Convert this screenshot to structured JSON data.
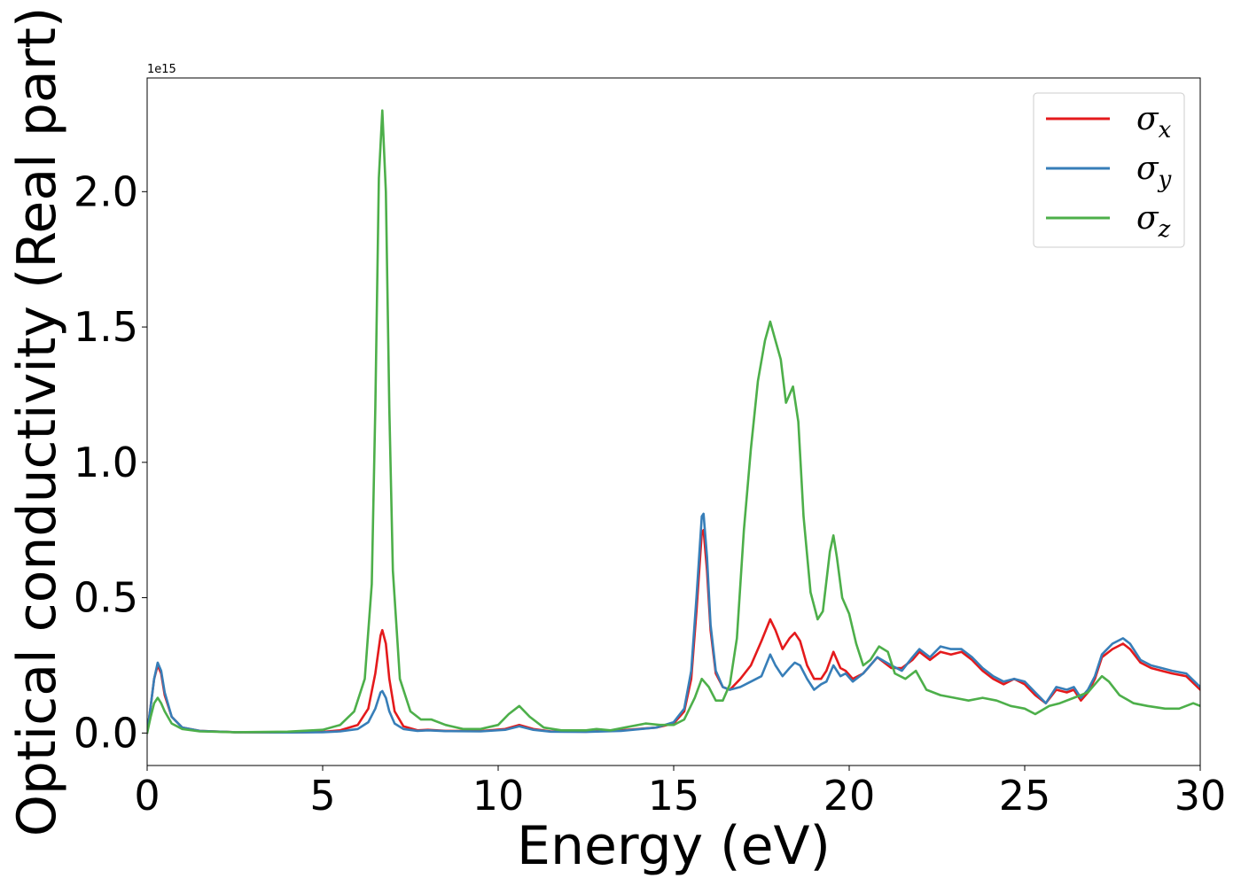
{
  "chart_data": {
    "type": "line",
    "title": "",
    "xlabel": "Energy (eV)",
    "ylabel": "Optical conductivity (Real part)",
    "y_offset_label": "1e15",
    "xlim": [
      0,
      30
    ],
    "ylim": [
      -0.12,
      2.42
    ],
    "xticks": [
      0,
      5,
      10,
      15,
      20,
      25,
      30
    ],
    "xtick_labels": [
      "0",
      "5",
      "10",
      "15",
      "20",
      "25",
      "30"
    ],
    "yticks": [
      0.0,
      0.5,
      1.0,
      1.5,
      2.0
    ],
    "ytick_labels": [
      "0.0",
      "0.5",
      "1.0",
      "1.5",
      "2.0"
    ],
    "grid": false,
    "legend_position": "top-right",
    "series": [
      {
        "name": "σx",
        "legend_base": "σ",
        "legend_sub": "x",
        "color": "#e41a1c",
        "points": [
          [
            0.0,
            0.0
          ],
          [
            0.1,
            0.1
          ],
          [
            0.2,
            0.2
          ],
          [
            0.3,
            0.25
          ],
          [
            0.4,
            0.22
          ],
          [
            0.5,
            0.14
          ],
          [
            0.7,
            0.06
          ],
          [
            1.0,
            0.02
          ],
          [
            1.5,
            0.008
          ],
          [
            2.5,
            0.003
          ],
          [
            4.0,
            0.002
          ],
          [
            5.0,
            0.004
          ],
          [
            5.5,
            0.01
          ],
          [
            6.0,
            0.03
          ],
          [
            6.3,
            0.09
          ],
          [
            6.5,
            0.22
          ],
          [
            6.65,
            0.36
          ],
          [
            6.7,
            0.38
          ],
          [
            6.8,
            0.33
          ],
          [
            6.9,
            0.2
          ],
          [
            7.05,
            0.08
          ],
          [
            7.3,
            0.025
          ],
          [
            7.7,
            0.01
          ],
          [
            8.0,
            0.012
          ],
          [
            8.5,
            0.008
          ],
          [
            9.5,
            0.007
          ],
          [
            10.2,
            0.015
          ],
          [
            10.6,
            0.03
          ],
          [
            11.0,
            0.015
          ],
          [
            11.5,
            0.006
          ],
          [
            12.5,
            0.005
          ],
          [
            13.5,
            0.01
          ],
          [
            14.5,
            0.02
          ],
          [
            15.0,
            0.035
          ],
          [
            15.3,
            0.08
          ],
          [
            15.5,
            0.2
          ],
          [
            15.65,
            0.45
          ],
          [
            15.8,
            0.74
          ],
          [
            15.85,
            0.75
          ],
          [
            15.95,
            0.6
          ],
          [
            16.05,
            0.38
          ],
          [
            16.2,
            0.22
          ],
          [
            16.4,
            0.17
          ],
          [
            16.6,
            0.16
          ],
          [
            16.9,
            0.2
          ],
          [
            17.2,
            0.25
          ],
          [
            17.5,
            0.34
          ],
          [
            17.75,
            0.42
          ],
          [
            17.9,
            0.38
          ],
          [
            18.1,
            0.31
          ],
          [
            18.3,
            0.35
          ],
          [
            18.45,
            0.37
          ],
          [
            18.6,
            0.34
          ],
          [
            18.8,
            0.25
          ],
          [
            19.0,
            0.2
          ],
          [
            19.2,
            0.2
          ],
          [
            19.35,
            0.23
          ],
          [
            19.55,
            0.3
          ],
          [
            19.75,
            0.24
          ],
          [
            19.9,
            0.23
          ],
          [
            20.1,
            0.2
          ],
          [
            20.4,
            0.22
          ],
          [
            20.8,
            0.28
          ],
          [
            21.2,
            0.24
          ],
          [
            21.5,
            0.24
          ],
          [
            21.8,
            0.27
          ],
          [
            22.0,
            0.3
          ],
          [
            22.3,
            0.27
          ],
          [
            22.6,
            0.3
          ],
          [
            22.9,
            0.29
          ],
          [
            23.2,
            0.3
          ],
          [
            23.5,
            0.27
          ],
          [
            23.8,
            0.23
          ],
          [
            24.1,
            0.2
          ],
          [
            24.4,
            0.18
          ],
          [
            24.7,
            0.2
          ],
          [
            25.0,
            0.18
          ],
          [
            25.3,
            0.14
          ],
          [
            25.6,
            0.11
          ],
          [
            25.9,
            0.16
          ],
          [
            26.2,
            0.15
          ],
          [
            26.4,
            0.16
          ],
          [
            26.6,
            0.12
          ],
          [
            26.8,
            0.15
          ],
          [
            27.0,
            0.2
          ],
          [
            27.2,
            0.28
          ],
          [
            27.5,
            0.31
          ],
          [
            27.8,
            0.33
          ],
          [
            28.0,
            0.31
          ],
          [
            28.3,
            0.26
          ],
          [
            28.6,
            0.24
          ],
          [
            28.9,
            0.23
          ],
          [
            29.2,
            0.22
          ],
          [
            29.6,
            0.21
          ],
          [
            30.0,
            0.16
          ]
        ]
      },
      {
        "name": "σy",
        "legend_base": "σ",
        "legend_sub": "y",
        "color": "#377eb8",
        "points": [
          [
            0.0,
            0.0
          ],
          [
            0.1,
            0.1
          ],
          [
            0.2,
            0.2
          ],
          [
            0.3,
            0.26
          ],
          [
            0.4,
            0.23
          ],
          [
            0.5,
            0.15
          ],
          [
            0.7,
            0.06
          ],
          [
            1.0,
            0.02
          ],
          [
            1.5,
            0.008
          ],
          [
            2.5,
            0.003
          ],
          [
            4.0,
            0.002
          ],
          [
            5.0,
            0.003
          ],
          [
            5.5,
            0.006
          ],
          [
            6.0,
            0.015
          ],
          [
            6.3,
            0.04
          ],
          [
            6.5,
            0.09
          ],
          [
            6.65,
            0.15
          ],
          [
            6.7,
            0.155
          ],
          [
            6.8,
            0.13
          ],
          [
            6.9,
            0.08
          ],
          [
            7.05,
            0.035
          ],
          [
            7.3,
            0.015
          ],
          [
            7.7,
            0.008
          ],
          [
            8.0,
            0.01
          ],
          [
            8.5,
            0.007
          ],
          [
            9.5,
            0.006
          ],
          [
            10.2,
            0.012
          ],
          [
            10.6,
            0.025
          ],
          [
            11.0,
            0.012
          ],
          [
            11.5,
            0.005
          ],
          [
            12.5,
            0.004
          ],
          [
            13.5,
            0.008
          ],
          [
            14.5,
            0.02
          ],
          [
            15.0,
            0.04
          ],
          [
            15.3,
            0.09
          ],
          [
            15.5,
            0.23
          ],
          [
            15.65,
            0.5
          ],
          [
            15.8,
            0.8
          ],
          [
            15.85,
            0.81
          ],
          [
            15.95,
            0.65
          ],
          [
            16.05,
            0.4
          ],
          [
            16.2,
            0.23
          ],
          [
            16.4,
            0.17
          ],
          [
            16.6,
            0.16
          ],
          [
            16.9,
            0.17
          ],
          [
            17.2,
            0.19
          ],
          [
            17.5,
            0.21
          ],
          [
            17.75,
            0.29
          ],
          [
            17.9,
            0.25
          ],
          [
            18.1,
            0.21
          ],
          [
            18.3,
            0.24
          ],
          [
            18.45,
            0.26
          ],
          [
            18.6,
            0.25
          ],
          [
            18.8,
            0.2
          ],
          [
            19.0,
            0.16
          ],
          [
            19.2,
            0.18
          ],
          [
            19.35,
            0.19
          ],
          [
            19.55,
            0.25
          ],
          [
            19.75,
            0.21
          ],
          [
            19.9,
            0.22
          ],
          [
            20.1,
            0.19
          ],
          [
            20.4,
            0.22
          ],
          [
            20.8,
            0.28
          ],
          [
            21.2,
            0.25
          ],
          [
            21.5,
            0.23
          ],
          [
            21.8,
            0.28
          ],
          [
            22.0,
            0.31
          ],
          [
            22.3,
            0.28
          ],
          [
            22.6,
            0.32
          ],
          [
            22.9,
            0.31
          ],
          [
            23.2,
            0.31
          ],
          [
            23.5,
            0.28
          ],
          [
            23.8,
            0.24
          ],
          [
            24.1,
            0.21
          ],
          [
            24.4,
            0.19
          ],
          [
            24.7,
            0.2
          ],
          [
            25.0,
            0.19
          ],
          [
            25.3,
            0.15
          ],
          [
            25.6,
            0.11
          ],
          [
            25.9,
            0.17
          ],
          [
            26.2,
            0.16
          ],
          [
            26.4,
            0.17
          ],
          [
            26.6,
            0.13
          ],
          [
            26.8,
            0.16
          ],
          [
            27.0,
            0.21
          ],
          [
            27.2,
            0.29
          ],
          [
            27.5,
            0.33
          ],
          [
            27.8,
            0.35
          ],
          [
            28.0,
            0.33
          ],
          [
            28.3,
            0.27
          ],
          [
            28.6,
            0.25
          ],
          [
            28.9,
            0.24
          ],
          [
            29.2,
            0.23
          ],
          [
            29.6,
            0.22
          ],
          [
            30.0,
            0.17
          ]
        ]
      },
      {
        "name": "σz",
        "legend_base": "σ",
        "legend_sub": "z",
        "color": "#4daf4a",
        "points": [
          [
            0.0,
            0.0
          ],
          [
            0.1,
            0.06
          ],
          [
            0.2,
            0.11
          ],
          [
            0.3,
            0.13
          ],
          [
            0.4,
            0.11
          ],
          [
            0.5,
            0.08
          ],
          [
            0.7,
            0.035
          ],
          [
            1.0,
            0.015
          ],
          [
            1.5,
            0.006
          ],
          [
            2.5,
            0.003
          ],
          [
            4.0,
            0.005
          ],
          [
            5.0,
            0.012
          ],
          [
            5.5,
            0.03
          ],
          [
            5.9,
            0.08
          ],
          [
            6.2,
            0.2
          ],
          [
            6.4,
            0.55
          ],
          [
            6.5,
            1.2
          ],
          [
            6.6,
            2.05
          ],
          [
            6.7,
            2.3
          ],
          [
            6.8,
            2.0
          ],
          [
            6.9,
            1.2
          ],
          [
            7.0,
            0.6
          ],
          [
            7.2,
            0.2
          ],
          [
            7.5,
            0.08
          ],
          [
            7.8,
            0.05
          ],
          [
            8.1,
            0.05
          ],
          [
            8.5,
            0.03
          ],
          [
            9.0,
            0.015
          ],
          [
            9.5,
            0.015
          ],
          [
            10.0,
            0.03
          ],
          [
            10.3,
            0.07
          ],
          [
            10.6,
            0.1
          ],
          [
            10.9,
            0.06
          ],
          [
            11.3,
            0.02
          ],
          [
            11.8,
            0.01
          ],
          [
            12.5,
            0.01
          ],
          [
            12.8,
            0.015
          ],
          [
            13.2,
            0.01
          ],
          [
            13.6,
            0.02
          ],
          [
            14.2,
            0.035
          ],
          [
            14.6,
            0.03
          ],
          [
            15.0,
            0.03
          ],
          [
            15.3,
            0.05
          ],
          [
            15.6,
            0.13
          ],
          [
            15.8,
            0.2
          ],
          [
            16.0,
            0.17
          ],
          [
            16.2,
            0.12
          ],
          [
            16.4,
            0.12
          ],
          [
            16.6,
            0.18
          ],
          [
            16.8,
            0.35
          ],
          [
            17.0,
            0.75
          ],
          [
            17.2,
            1.05
          ],
          [
            17.4,
            1.3
          ],
          [
            17.6,
            1.45
          ],
          [
            17.75,
            1.52
          ],
          [
            17.9,
            1.45
          ],
          [
            18.05,
            1.38
          ],
          [
            18.2,
            1.22
          ],
          [
            18.4,
            1.28
          ],
          [
            18.55,
            1.15
          ],
          [
            18.7,
            0.8
          ],
          [
            18.9,
            0.52
          ],
          [
            19.1,
            0.42
          ],
          [
            19.25,
            0.45
          ],
          [
            19.45,
            0.67
          ],
          [
            19.55,
            0.73
          ],
          [
            19.65,
            0.65
          ],
          [
            19.8,
            0.5
          ],
          [
            20.0,
            0.44
          ],
          [
            20.2,
            0.33
          ],
          [
            20.4,
            0.25
          ],
          [
            20.6,
            0.27
          ],
          [
            20.85,
            0.32
          ],
          [
            21.1,
            0.3
          ],
          [
            21.3,
            0.22
          ],
          [
            21.6,
            0.2
          ],
          [
            21.9,
            0.23
          ],
          [
            22.2,
            0.16
          ],
          [
            22.6,
            0.14
          ],
          [
            23.0,
            0.13
          ],
          [
            23.4,
            0.12
          ],
          [
            23.8,
            0.13
          ],
          [
            24.2,
            0.12
          ],
          [
            24.6,
            0.1
          ],
          [
            25.0,
            0.09
          ],
          [
            25.3,
            0.07
          ],
          [
            25.7,
            0.1
          ],
          [
            26.0,
            0.11
          ],
          [
            26.4,
            0.13
          ],
          [
            26.8,
            0.15
          ],
          [
            27.0,
            0.18
          ],
          [
            27.2,
            0.21
          ],
          [
            27.4,
            0.19
          ],
          [
            27.7,
            0.14
          ],
          [
            28.1,
            0.11
          ],
          [
            28.5,
            0.1
          ],
          [
            29.0,
            0.09
          ],
          [
            29.4,
            0.09
          ],
          [
            29.8,
            0.11
          ],
          [
            30.0,
            0.1
          ]
        ]
      }
    ]
  }
}
